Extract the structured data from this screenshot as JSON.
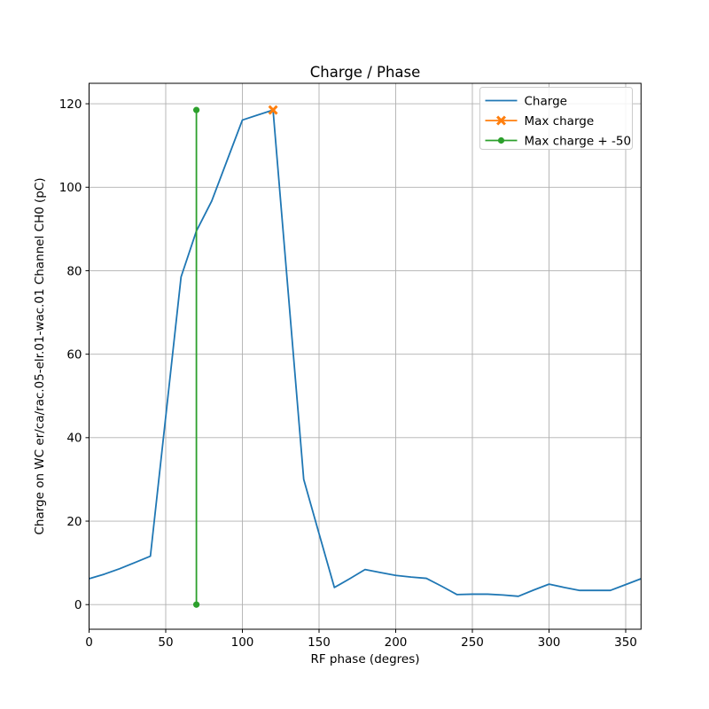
{
  "chart_data": {
    "type": "line",
    "title": "Charge / Phase",
    "xlabel": "RF phase (degres)",
    "ylabel": "Charge on WC er/ca/rac.05-elr.01-wac.01 Channel CH0 (pC)",
    "xlim": [
      0,
      360
    ],
    "ylim": [
      -5.9,
      124.9
    ],
    "xticks": [
      0,
      50,
      100,
      150,
      200,
      250,
      300,
      350
    ],
    "yticks": [
      0,
      20,
      40,
      60,
      80,
      100,
      120
    ],
    "grid": true,
    "legend_position": "upper right",
    "colors": {
      "grid": "#b0b0b0",
      "spine": "#000000",
      "legend_border": "#cccccc",
      "charge": "#1f77b4",
      "max_charge": "#ff7f0e",
      "max_charge_offset": "#2ca02c"
    },
    "series": [
      {
        "name": "Charge",
        "color": "#1f77b4",
        "marker": "none",
        "x": [
          0,
          10,
          20,
          30,
          40,
          50,
          60,
          70,
          80,
          90,
          100,
          110,
          120,
          130,
          140,
          150,
          160,
          170,
          180,
          190,
          200,
          210,
          220,
          230,
          240,
          250,
          260,
          270,
          280,
          290,
          300,
          310,
          320,
          330,
          340,
          350,
          360
        ],
        "y": [
          6.2,
          7.3,
          8.6,
          10.1,
          11.6,
          45.0,
          78.5,
          89.5,
          96.7,
          106.4,
          116.1,
          117.3,
          118.5,
          74.3,
          30.0,
          17.0,
          4.1,
          6.2,
          8.4,
          7.7,
          7.0,
          6.6,
          6.3,
          4.4,
          2.4,
          2.5,
          2.5,
          2.3,
          2.0,
          3.5,
          4.9,
          4.1,
          3.4,
          3.4,
          3.4,
          4.8,
          6.2
        ]
      },
      {
        "name": "Max charge",
        "color": "#ff7f0e",
        "marker": "X",
        "x": [
          120
        ],
        "y": [
          118.5
        ]
      },
      {
        "name": "Max charge + -50",
        "color": "#2ca02c",
        "marker": "o",
        "x": [
          70,
          70
        ],
        "y": [
          118.5,
          0.0
        ]
      }
    ]
  }
}
